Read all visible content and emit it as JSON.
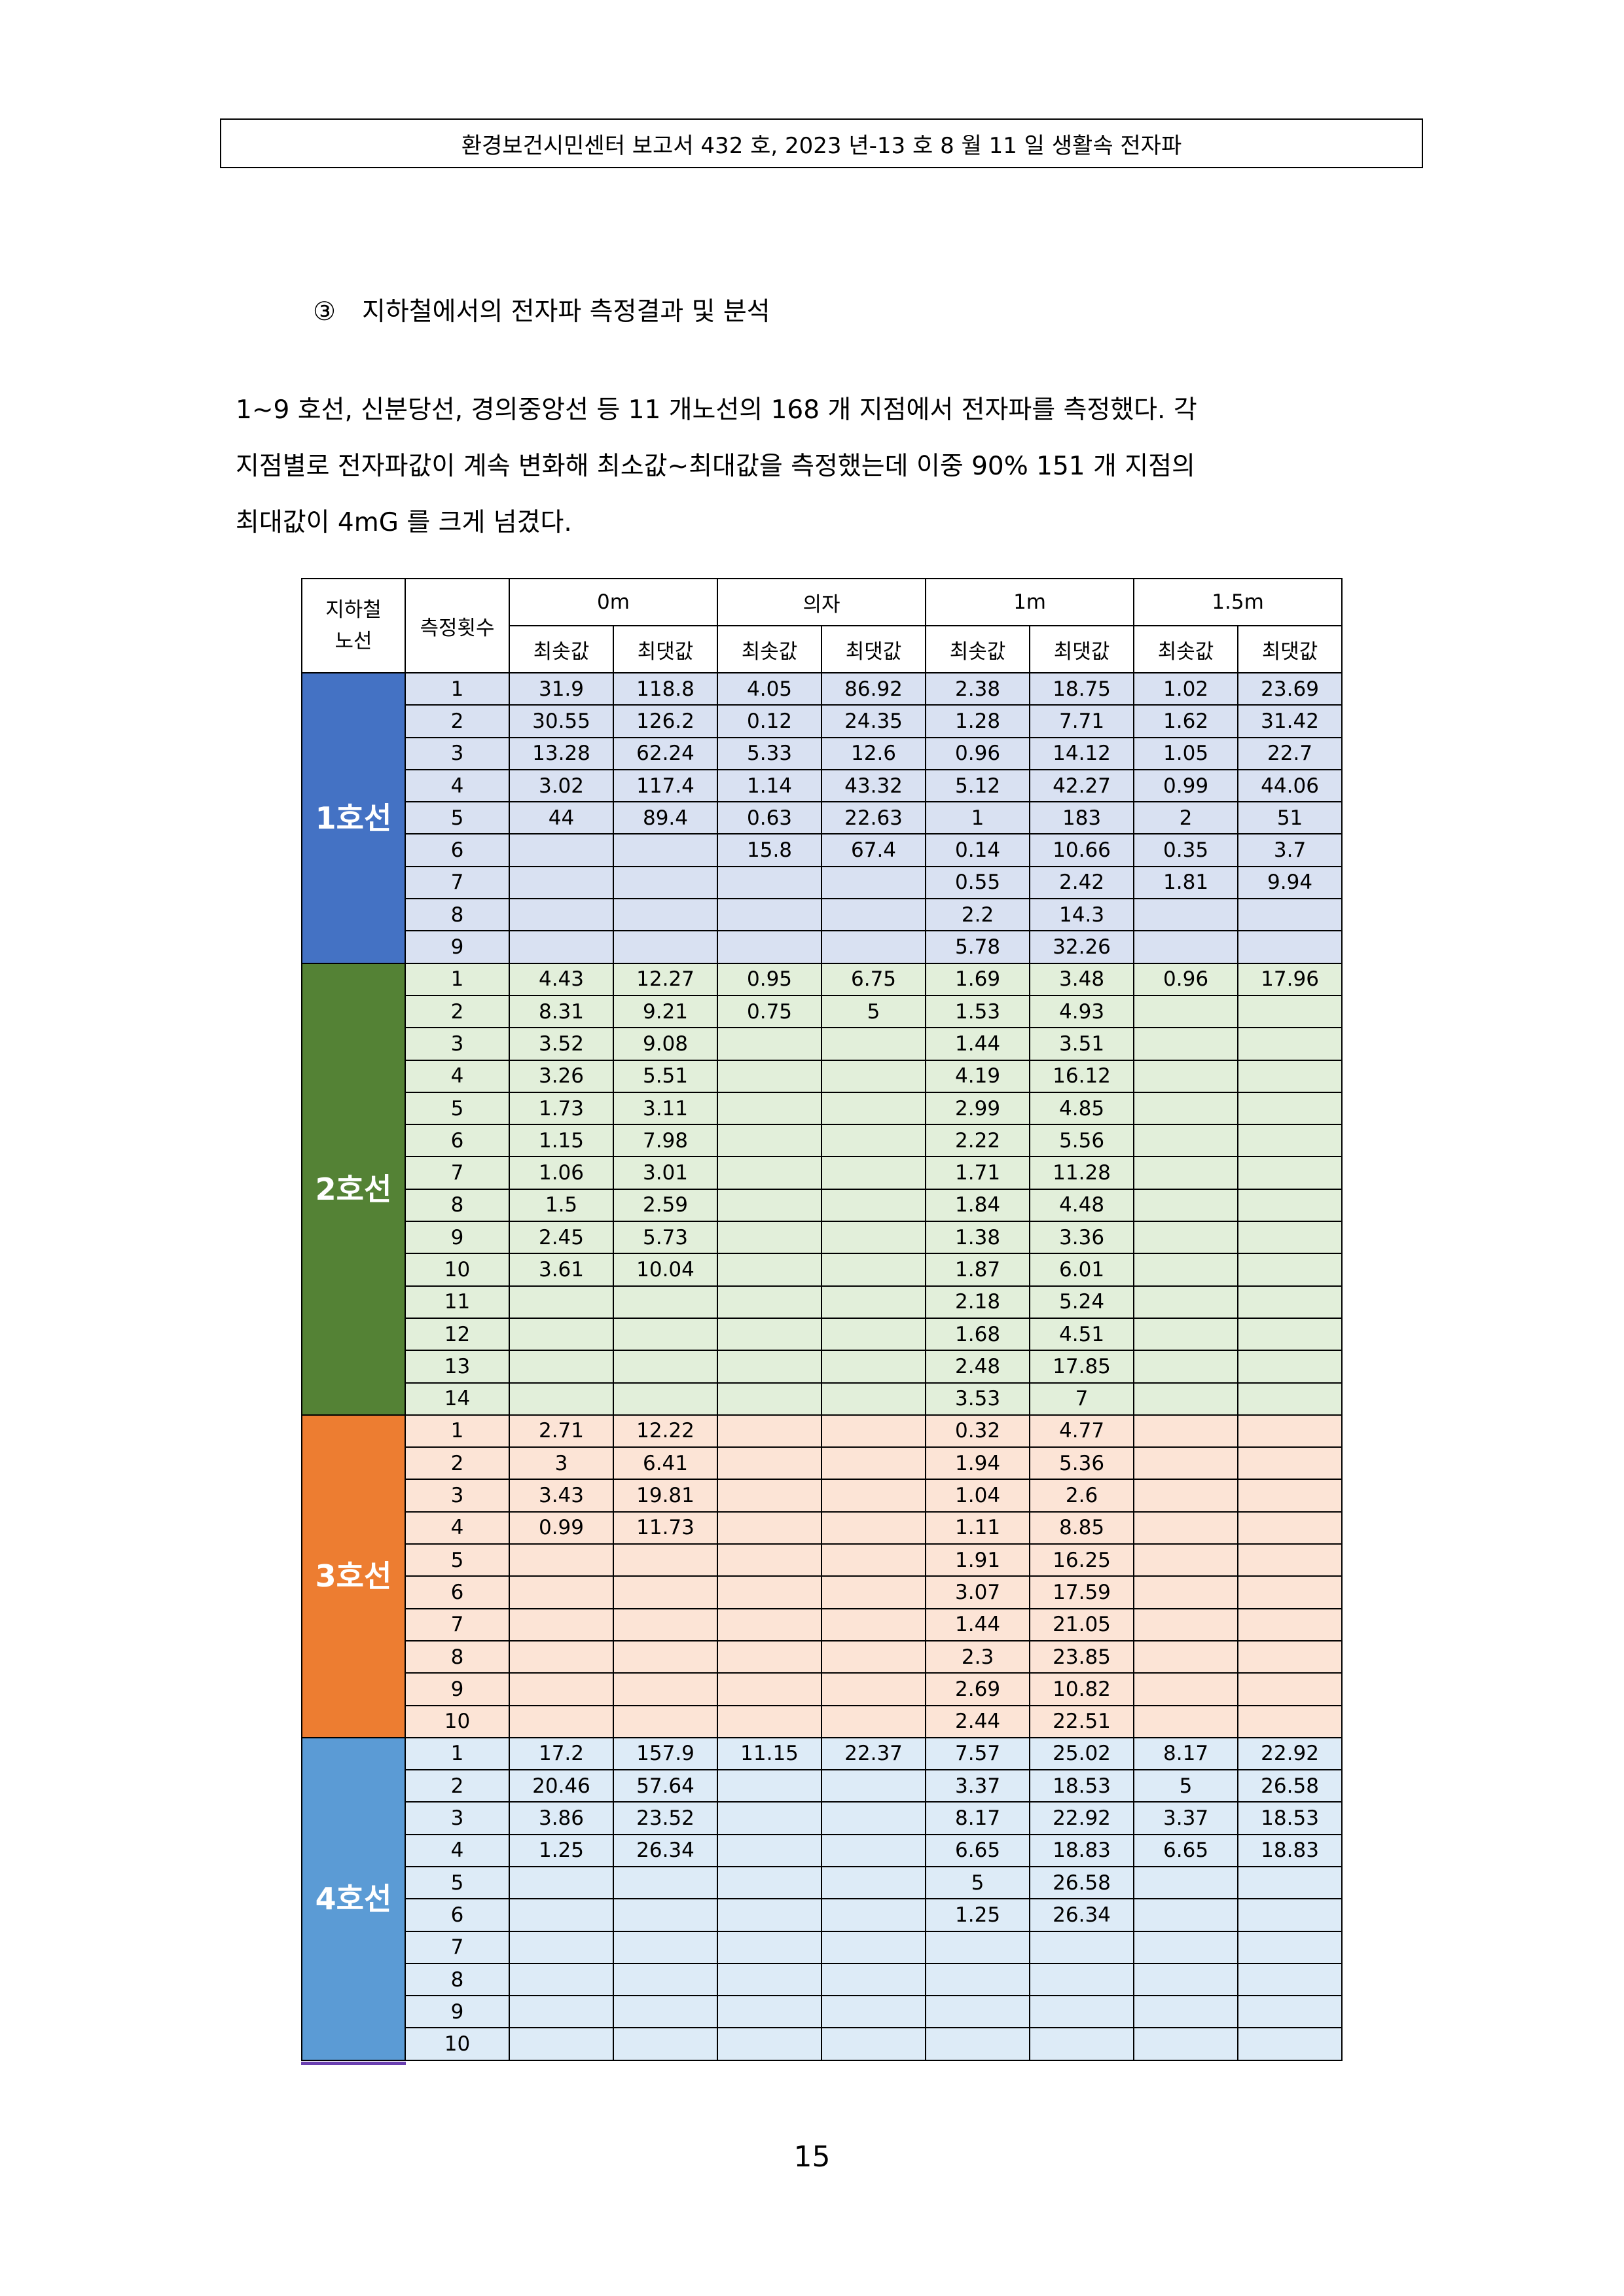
{
  "header": {
    "text": "환경보건시민센터 보고서 432 호, 2023 년-13 호 8 월 11 일 생활속 전자파"
  },
  "section": {
    "number": "③",
    "title": "지하철에서의 전자파 측정결과 및 분석"
  },
  "paragraph": {
    "lines": [
      "1~9 호선, 신분당선, 경의중앙선 등 11 개노선의 168 개 지점에서 전자파를 측정했다. 각",
      "지점별로 전자파값이 계속 변화해 최소값~최대값을 측정했는데 이중 90% 151 개 지점의",
      "최대값이 4mG 를 크게 넘겼다."
    ]
  },
  "table": {
    "headers": {
      "line": "지하철\n노선",
      "count": "측정횟수",
      "groups": [
        "0m",
        "의자",
        "1m",
        "1.5m"
      ],
      "min": "최솟값",
      "max": "최댓값"
    },
    "lines": [
      {
        "name": "1호선",
        "label_color": "#4472c4",
        "row_color": "#d9e1f2",
        "rows": [
          [
            "1",
            "31.9",
            "118.8",
            "4.05",
            "86.92",
            "2.38",
            "18.75",
            "1.02",
            "23.69"
          ],
          [
            "2",
            "30.55",
            "126.2",
            "0.12",
            "24.35",
            "1.28",
            "7.71",
            "1.62",
            "31.42"
          ],
          [
            "3",
            "13.28",
            "62.24",
            "5.33",
            "12.6",
            "0.96",
            "14.12",
            "1.05",
            "22.7"
          ],
          [
            "4",
            "3.02",
            "117.4",
            "1.14",
            "43.32",
            "5.12",
            "42.27",
            "0.99",
            "44.06"
          ],
          [
            "5",
            "44",
            "89.4",
            "0.63",
            "22.63",
            "1",
            "183",
            "2",
            "51"
          ],
          [
            "6",
            "",
            "",
            "15.8",
            "67.4",
            "0.14",
            "10.66",
            "0.35",
            "3.7"
          ],
          [
            "7",
            "",
            "",
            "",
            "",
            "0.55",
            "2.42",
            "1.81",
            "9.94"
          ],
          [
            "8",
            "",
            "",
            "",
            "",
            "2.2",
            "14.3",
            "",
            ""
          ],
          [
            "9",
            "",
            "",
            "",
            "",
            "5.78",
            "32.26",
            "",
            ""
          ]
        ]
      },
      {
        "name": "2호선",
        "label_color": "#548235",
        "row_color": "#e2efda",
        "rows": [
          [
            "1",
            "4.43",
            "12.27",
            "0.95",
            "6.75",
            "1.69",
            "3.48",
            "0.96",
            "17.96"
          ],
          [
            "2",
            "8.31",
            "9.21",
            "0.75",
            "5",
            "1.53",
            "4.93",
            "",
            ""
          ],
          [
            "3",
            "3.52",
            "9.08",
            "",
            "",
            "1.44",
            "3.51",
            "",
            ""
          ],
          [
            "4",
            "3.26",
            "5.51",
            "",
            "",
            "4.19",
            "16.12",
            "",
            ""
          ],
          [
            "5",
            "1.73",
            "3.11",
            "",
            "",
            "2.99",
            "4.85",
            "",
            ""
          ],
          [
            "6",
            "1.15",
            "7.98",
            "",
            "",
            "2.22",
            "5.56",
            "",
            ""
          ],
          [
            "7",
            "1.06",
            "3.01",
            "",
            "",
            "1.71",
            "11.28",
            "",
            ""
          ],
          [
            "8",
            "1.5",
            "2.59",
            "",
            "",
            "1.84",
            "4.48",
            "",
            ""
          ],
          [
            "9",
            "2.45",
            "5.73",
            "",
            "",
            "1.38",
            "3.36",
            "",
            ""
          ],
          [
            "10",
            "3.61",
            "10.04",
            "",
            "",
            "1.87",
            "6.01",
            "",
            ""
          ],
          [
            "11",
            "",
            "",
            "",
            "",
            "2.18",
            "5.24",
            "",
            ""
          ],
          [
            "12",
            "",
            "",
            "",
            "",
            "1.68",
            "4.51",
            "",
            ""
          ],
          [
            "13",
            "",
            "",
            "",
            "",
            "2.48",
            "17.85",
            "",
            ""
          ],
          [
            "14",
            "",
            "",
            "",
            "",
            "3.53",
            "7",
            "",
            ""
          ]
        ]
      },
      {
        "name": "3호선",
        "label_color": "#ed7d31",
        "row_color": "#fce4d6",
        "rows": [
          [
            "1",
            "2.71",
            "12.22",
            "",
            "",
            "0.32",
            "4.77",
            "",
            ""
          ],
          [
            "2",
            "3",
            "6.41",
            "",
            "",
            "1.94",
            "5.36",
            "",
            ""
          ],
          [
            "3",
            "3.43",
            "19.81",
            "",
            "",
            "1.04",
            "2.6",
            "",
            ""
          ],
          [
            "4",
            "0.99",
            "11.73",
            "",
            "",
            "1.11",
            "8.85",
            "",
            ""
          ],
          [
            "5",
            "",
            "",
            "",
            "",
            "1.91",
            "16.25",
            "",
            ""
          ],
          [
            "6",
            "",
            "",
            "",
            "",
            "3.07",
            "17.59",
            "",
            ""
          ],
          [
            "7",
            "",
            "",
            "",
            "",
            "1.44",
            "21.05",
            "",
            ""
          ],
          [
            "8",
            "",
            "",
            "",
            "",
            "2.3",
            "23.85",
            "",
            ""
          ],
          [
            "9",
            "",
            "",
            "",
            "",
            "2.69",
            "10.82",
            "",
            ""
          ],
          [
            "10",
            "",
            "",
            "",
            "",
            "2.44",
            "22.51",
            "",
            ""
          ]
        ]
      },
      {
        "name": "4호선",
        "label_color": "#5b9bd5",
        "row_color": "#ddebf7",
        "rows": [
          [
            "1",
            "17.2",
            "157.9",
            "11.15",
            "22.37",
            "7.57",
            "25.02",
            "8.17",
            "22.92"
          ],
          [
            "2",
            "20.46",
            "57.64",
            "",
            "",
            "3.37",
            "18.53",
            "5",
            "26.58"
          ],
          [
            "3",
            "3.86",
            "23.52",
            "",
            "",
            "8.17",
            "22.92",
            "3.37",
            "18.53"
          ],
          [
            "4",
            "1.25",
            "26.34",
            "",
            "",
            "6.65",
            "18.83",
            "6.65",
            "18.83"
          ],
          [
            "5",
            "",
            "",
            "",
            "",
            "5",
            "26.58",
            "",
            ""
          ],
          [
            "6",
            "",
            "",
            "",
            "",
            "1.25",
            "26.34",
            "",
            ""
          ],
          [
            "7",
            "",
            "",
            "",
            "",
            "",
            "",
            "",
            ""
          ],
          [
            "8",
            "",
            "",
            "",
            "",
            "",
            "",
            "",
            ""
          ],
          [
            "9",
            "",
            "",
            "",
            "",
            "",
            "",
            "",
            ""
          ],
          [
            "10",
            "",
            "",
            "",
            "",
            "",
            "",
            "",
            ""
          ]
        ]
      }
    ]
  },
  "page_number": "15"
}
